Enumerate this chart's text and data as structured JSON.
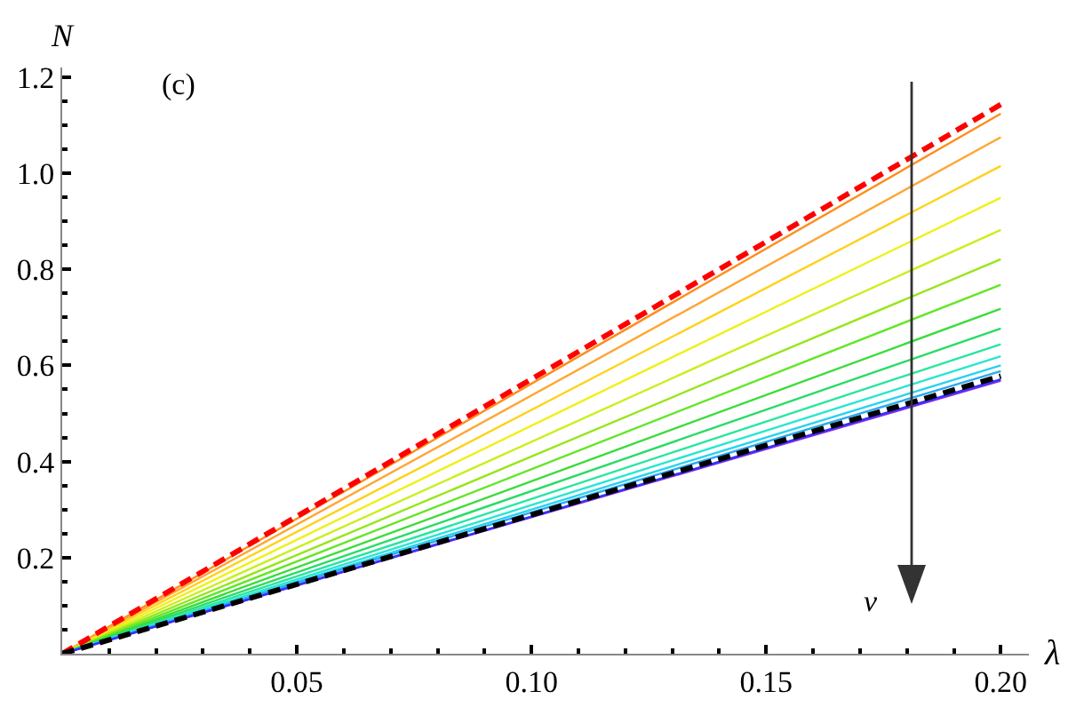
{
  "chart_data": {
    "type": "line",
    "xlabel": "λ",
    "ylabel": "N",
    "x": [
      0,
      0.2
    ],
    "xlim": [
      0,
      0.206
    ],
    "ylim": [
      0,
      1.22
    ],
    "xticks": [
      0.05,
      {
        "value": 0.1,
        "label": "0.10"
      },
      0.15,
      {
        "value": 0.2,
        "label": "0.20"
      }
    ],
    "yticks": [
      0.2,
      0.4,
      0.6,
      0.8,
      {
        "value": 1.0,
        "label": "1.0"
      },
      1.2
    ],
    "grid": false,
    "marker": "none",
    "annotations": [
      "(c)",
      "v"
    ],
    "series": [
      {
        "color": "#ff8c1a",
        "values": [
          0,
          1.124
        ]
      },
      {
        "color": "#ffa533",
        "values": [
          0,
          1.075
        ]
      },
      {
        "color": "#ffd21a",
        "values": [
          0,
          1.015
        ]
      },
      {
        "color": "#f0f01a",
        "values": [
          0,
          0.949
        ]
      },
      {
        "color": "#c8f01a",
        "values": [
          0,
          0.882
        ]
      },
      {
        "color": "#96e61a",
        "values": [
          0,
          0.821
        ]
      },
      {
        "color": "#64e628",
        "values": [
          0,
          0.768
        ]
      },
      {
        "color": "#3cdc3c",
        "values": [
          0,
          0.718
        ]
      },
      {
        "color": "#28dc64",
        "values": [
          0,
          0.677
        ]
      },
      {
        "color": "#28e6a0",
        "values": [
          0,
          0.644
        ]
      },
      {
        "color": "#28e6d2",
        "values": [
          0,
          0.619
        ]
      },
      {
        "color": "#28d2f0",
        "values": [
          0,
          0.6
        ]
      },
      {
        "color": "#28aaf0",
        "values": [
          0,
          0.588
        ]
      },
      {
        "color": "#8a2be2",
        "values": [
          0,
          0.568
        ]
      },
      {
        "color": "#3232ff",
        "values": [
          0,
          0.571
        ]
      },
      {
        "color": "#ff0000",
        "values": [
          0,
          1.143
        ],
        "line_style": "dashed"
      },
      {
        "color": "#000000",
        "values": [
          0,
          0.578
        ],
        "line_style": "dashed"
      }
    ]
  }
}
